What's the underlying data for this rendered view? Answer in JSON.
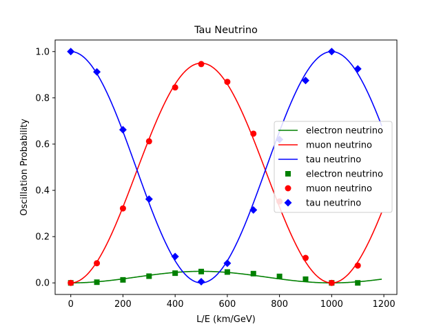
{
  "chart_data": {
    "type": "line",
    "title": "Tau Neutrino",
    "xlabel": "L/E (km/GeV)",
    "ylabel": "Oscillation Probability",
    "xlim": [
      -60,
      1250
    ],
    "ylim": [
      -0.05,
      1.05
    ],
    "xticks": [
      0,
      200,
      400,
      600,
      800,
      1000,
      1200
    ],
    "yticks": [
      0.0,
      0.2,
      0.4,
      0.6,
      0.8,
      1.0
    ],
    "grid": false,
    "legend_position": "center-right",
    "x_points": [
      0,
      100,
      200,
      300,
      400,
      500,
      600,
      700,
      800,
      900,
      1000,
      1100
    ],
    "curve_x_max": 1195,
    "lines": [
      {
        "name": "electron neutrino",
        "color": "#008000",
        "formula": "electron"
      },
      {
        "name": "muon neutrino",
        "color": "#ff0000",
        "formula": "muon"
      },
      {
        "name": "tau neutrino",
        "color": "#0000ff",
        "formula": "tau"
      }
    ],
    "markers": [
      {
        "name": "electron neutrino",
        "color": "#008000",
        "marker": "square",
        "values": [
          0.0,
          0.003,
          0.013,
          0.029,
          0.042,
          0.049,
          0.047,
          0.04,
          0.028,
          0.016,
          0.0,
          0.0
        ]
      },
      {
        "name": "muon neutrino",
        "color": "#ff0000",
        "marker": "circle",
        "values": [
          0.0,
          0.085,
          0.322,
          0.612,
          0.845,
          0.946,
          0.869,
          0.645,
          0.352,
          0.108,
          0.0,
          0.075
        ]
      },
      {
        "name": "tau neutrino",
        "color": "#0000ff",
        "marker": "diamond",
        "values": [
          1.0,
          0.912,
          0.662,
          0.362,
          0.114,
          0.005,
          0.085,
          0.315,
          0.62,
          0.875,
          1.0,
          0.925
        ]
      }
    ]
  }
}
